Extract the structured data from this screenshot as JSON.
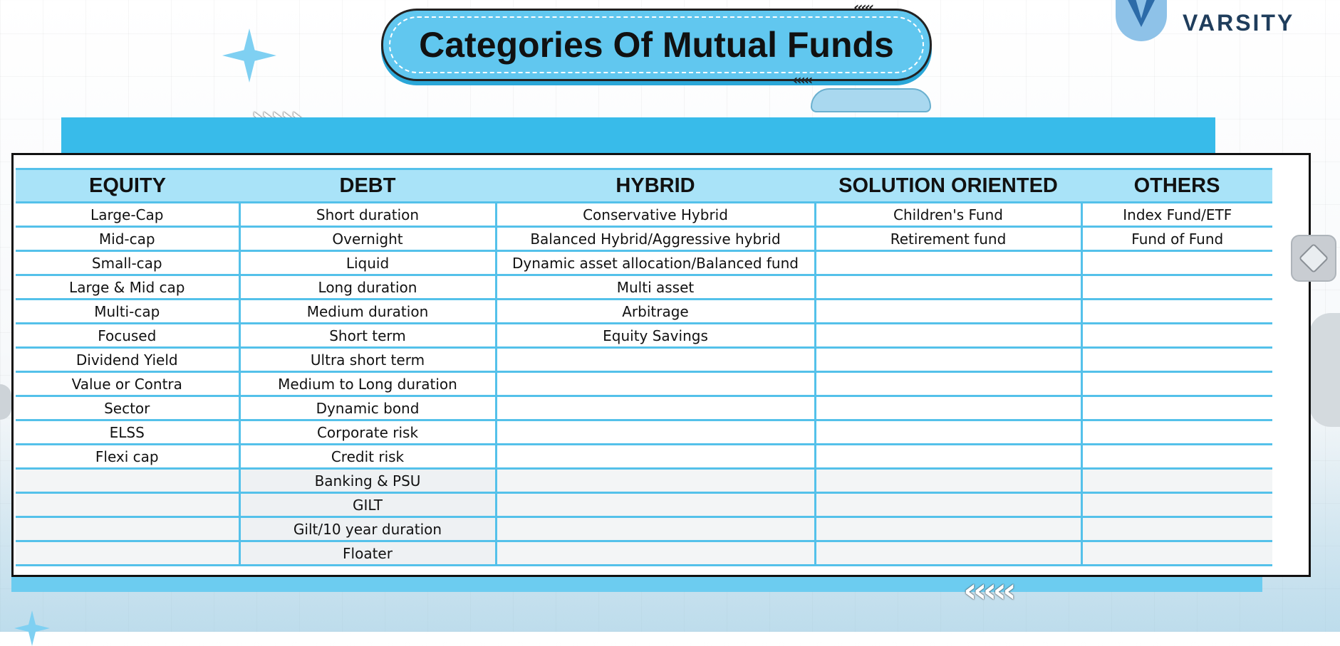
{
  "title": "Categories Of Mutual Funds",
  "logo": {
    "text": "VARSITY",
    "icon": "varsity-v-shield-icon"
  },
  "decorations": {
    "chevrons_right": "›››››",
    "chevrons_left": "‹‹‹‹‹",
    "chevrons_small_left": "‹‹‹‹‹"
  },
  "colors": {
    "accent": "#61c7ef",
    "header_row": "#a9e3f8",
    "grid_line": "#54c1ea",
    "band": "#38bbea"
  },
  "table": {
    "columns": [
      "EQUITY",
      "DEBT",
      "HYBRID",
      "SOLUTION ORIENTED",
      "OTHERS"
    ],
    "rows": [
      [
        "Large-Cap",
        "Short duration",
        "Conservative Hybrid",
        "Children's Fund",
        "Index Fund/ETF"
      ],
      [
        "Mid-cap",
        "Overnight",
        "Balanced Hybrid/Aggressive hybrid",
        "Retirement fund",
        "Fund of Fund"
      ],
      [
        "Small-cap",
        "Liquid",
        "Dynamic asset allocation/Balanced fund",
        "",
        ""
      ],
      [
        "Large & Mid cap",
        "Long duration",
        "Multi asset",
        "",
        ""
      ],
      [
        "Multi-cap",
        "Medium duration",
        "Arbitrage",
        "",
        ""
      ],
      [
        "Focused",
        "Short term",
        "Equity Savings",
        "",
        ""
      ],
      [
        "Dividend Yield",
        "Ultra short term",
        "",
        "",
        ""
      ],
      [
        "Value or Contra",
        "Medium to Long duration",
        "",
        "",
        ""
      ],
      [
        "Sector",
        "Dynamic bond",
        "",
        "",
        ""
      ],
      [
        "ELSS",
        "Corporate risk",
        "",
        "",
        ""
      ],
      [
        "Flexi cap",
        "Credit risk",
        "",
        "",
        ""
      ],
      [
        "",
        "Banking & PSU",
        "",
        "",
        ""
      ],
      [
        "",
        "GILT",
        "",
        "",
        ""
      ],
      [
        "",
        "Gilt/10 year duration",
        "",
        "",
        ""
      ],
      [
        "",
        "Floater",
        "",
        "",
        ""
      ]
    ]
  }
}
